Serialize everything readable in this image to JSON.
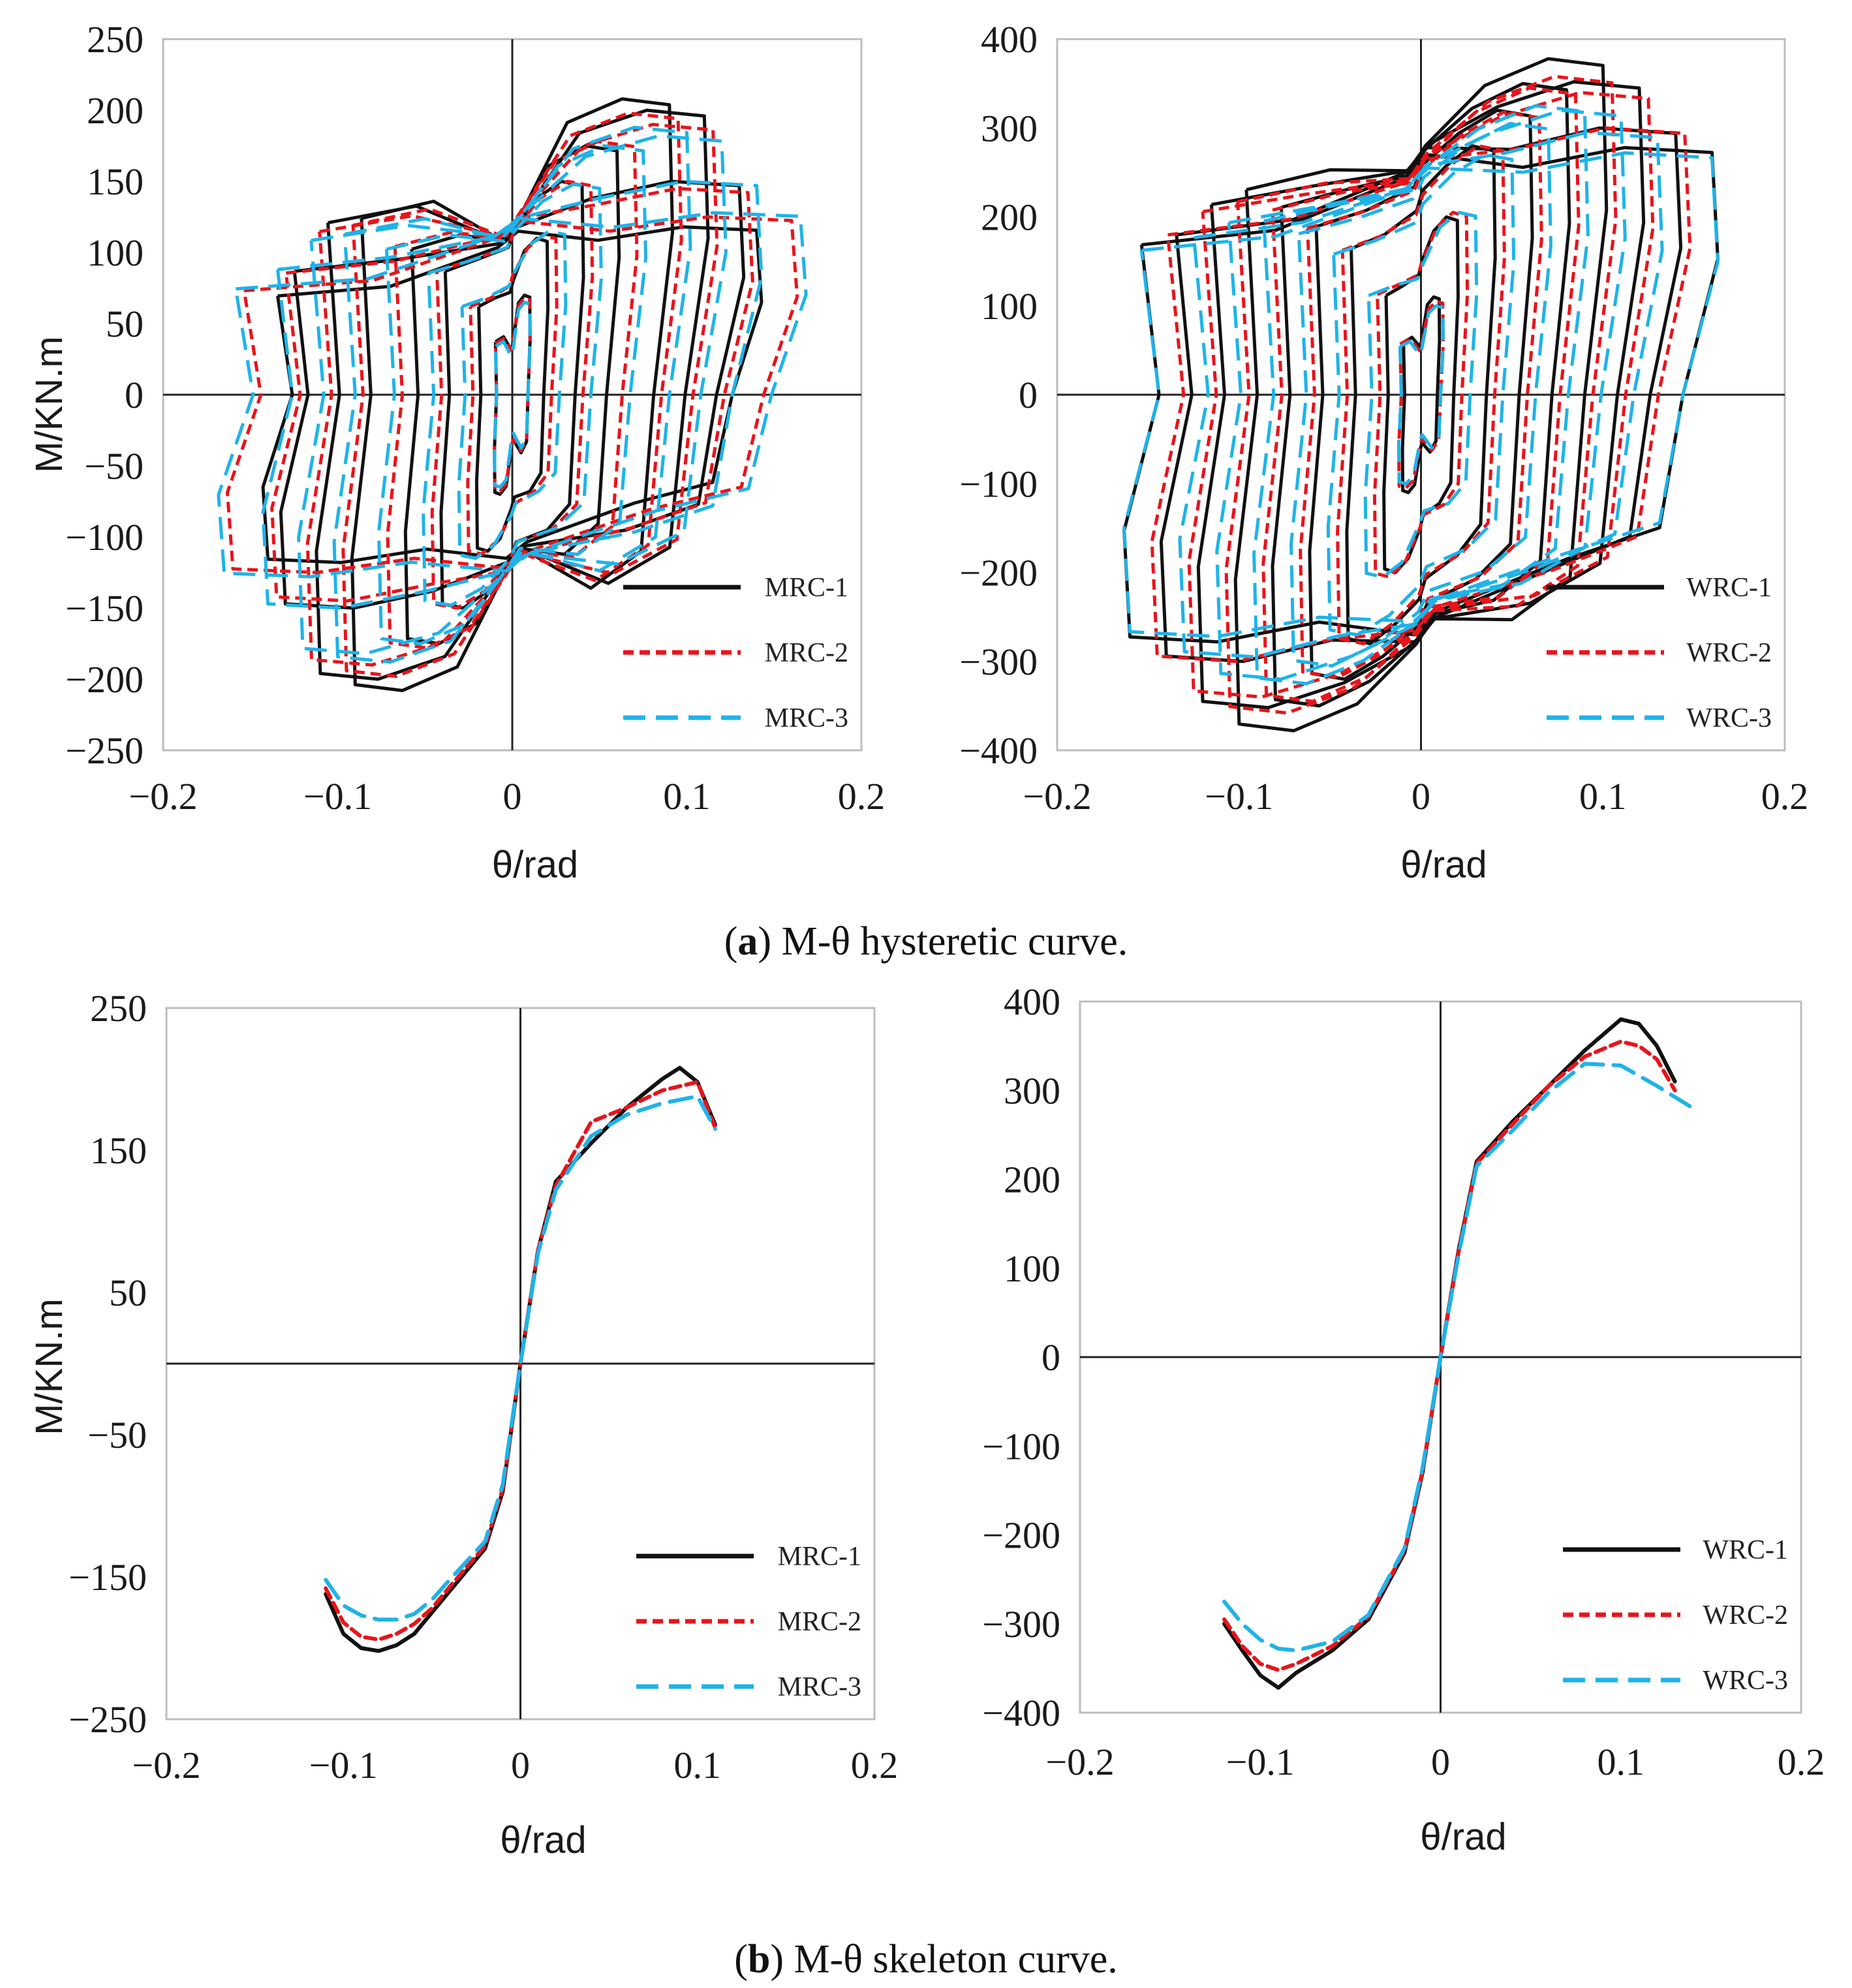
{
  "figure": {
    "caption_a": {
      "label": "a",
      "text": "M-θ hysteretic curve."
    },
    "caption_b": {
      "label": "b",
      "text": "M-θ skeleton curve."
    }
  },
  "colors": {
    "MRC-1": "#111111",
    "MRC-2": "#e8141b",
    "MRC-3": "#1fb3e8",
    "WRC-1": "#111111",
    "WRC-2": "#e8141b",
    "WRC-3": "#1fb3e8"
  },
  "chart_data": [
    {
      "id": "a-left",
      "type": "line",
      "subtype": "hysteresis",
      "xlabel": "θ/rad",
      "ylabel": "M/KN.m",
      "xlim": [
        -0.2,
        0.2
      ],
      "ylim": [
        -250,
        250
      ],
      "xticks": [
        -0.2,
        -0.1,
        0,
        0.1,
        0.2
      ],
      "xtick_labels": [
        "−0.2",
        "−0.1",
        "0",
        "0.1",
        "0.2"
      ],
      "yticks": [
        250,
        200,
        150,
        100,
        50,
        0,
        -50,
        -100,
        -150,
        -200,
        -250
      ],
      "ytick_labels": [
        "250",
        "200",
        "150",
        "100",
        "50",
        "0",
        "−50",
        "−100",
        "−150",
        "−200",
        "−250"
      ],
      "legend": [
        "MRC-1",
        "MRC-2",
        "MRC-3"
      ],
      "legend_position": "bottom-right",
      "series": [
        {
          "name": "MRC-1",
          "style": "solid",
          "loops": [
            {
              "amp": 0.01,
              "peak": 70,
              "ypeak": 60,
              "res": 35
            },
            {
              "amp": 0.02,
              "peak": 110,
              "ypeak": 100,
              "res": 80
            },
            {
              "amp": 0.04,
              "peak": 150,
              "ypeak": 140,
              "res": 115
            },
            {
              "amp": 0.06,
              "peak": 175,
              "ypeak": 165,
              "res": 120
            },
            {
              "amp": 0.09,
              "peak": 208,
              "ypeak": 200,
              "res": 120
            },
            {
              "amp": 0.11,
              "peak": 200,
              "ypeak": 195,
              "res": 120
            },
            {
              "amp": 0.13,
              "peak": 150,
              "ypeak": 140,
              "res": 118
            },
            {
              "amp": 0.14,
              "peak": 118,
              "ypeak": 112,
              "res": 115
            }
          ]
        },
        {
          "name": "MRC-2",
          "style": "dashed",
          "loops": [
            {
              "amp": 0.01,
              "peak": 68,
              "ypeak": 58,
              "res": 35
            },
            {
              "amp": 0.025,
              "peak": 112,
              "ypeak": 100,
              "res": 85
            },
            {
              "amp": 0.045,
              "peak": 150,
              "ypeak": 140,
              "res": 115
            },
            {
              "amp": 0.07,
              "peak": 178,
              "ypeak": 168,
              "res": 122
            },
            {
              "amp": 0.095,
              "peak": 198,
              "ypeak": 192,
              "res": 124
            },
            {
              "amp": 0.115,
              "peak": 190,
              "ypeak": 185,
              "res": 124
            },
            {
              "amp": 0.135,
              "peak": 145,
              "ypeak": 138,
              "res": 124
            },
            {
              "amp": 0.16,
              "peak": 125,
              "ypeak": 118,
              "res": 122
            }
          ]
        },
        {
          "name": "MRC-3",
          "style": "longdash",
          "loops": [
            {
              "amp": 0.01,
              "peak": 65,
              "ypeak": 55,
              "res": 30
            },
            {
              "amp": 0.03,
              "peak": 115,
              "ypeak": 100,
              "res": 85
            },
            {
              "amp": 0.05,
              "peak": 148,
              "ypeak": 138,
              "res": 115
            },
            {
              "amp": 0.075,
              "peak": 175,
              "ypeak": 165,
              "res": 120
            },
            {
              "amp": 0.1,
              "peak": 188,
              "ypeak": 182,
              "res": 122
            },
            {
              "amp": 0.12,
              "peak": 182,
              "ypeak": 175,
              "res": 124
            },
            {
              "amp": 0.14,
              "peak": 150,
              "ypeak": 142,
              "res": 124
            },
            {
              "amp": 0.165,
              "peak": 128,
              "ypeak": 120,
              "res": 124
            }
          ]
        }
      ]
    },
    {
      "id": "a-right",
      "type": "line",
      "subtype": "hysteresis",
      "xlabel": "θ/rad",
      "ylabel": "",
      "xlim": [
        -0.2,
        0.2
      ],
      "ylim": [
        -400,
        400
      ],
      "xticks": [
        -0.2,
        -0.1,
        0,
        0.1,
        0.2
      ],
      "xtick_labels": [
        "−0.2",
        "−0.1",
        "0",
        "0.1",
        "0.2"
      ],
      "yticks": [
        400,
        300,
        200,
        100,
        0,
        -100,
        -200,
        -300,
        -400
      ],
      "ytick_labels": [
        "400",
        "300",
        "200",
        "100",
        "0",
        "−100",
        "−200",
        "−300",
        "−400"
      ],
      "legend": [
        "WRC-1",
        "WRC-2",
        "WRC-3"
      ],
      "legend_position": "bottom-right",
      "series": [
        {
          "name": "WRC-1",
          "style": "solid",
          "loops": [
            {
              "amp": 0.01,
              "peak": 110,
              "ypeak": 95,
              "res": 60
            },
            {
              "amp": 0.02,
              "peak": 200,
              "ypeak": 180,
              "res": 150
            },
            {
              "amp": 0.04,
              "peak": 280,
              "ypeak": 265,
              "res": 230
            },
            {
              "amp": 0.06,
              "peak": 320,
              "ypeak": 305,
              "res": 260
            },
            {
              "amp": 0.08,
              "peak": 350,
              "ypeak": 340,
              "res": 275
            },
            {
              "amp": 0.1,
              "peak": 378,
              "ypeak": 372,
              "res": 280
            },
            {
              "amp": 0.12,
              "peak": 352,
              "ypeak": 345,
              "res": 280
            },
            {
              "amp": 0.14,
              "peak": 300,
              "ypeak": 290,
              "res": 278
            },
            {
              "amp": 0.16,
              "peak": 278,
              "ypeak": 272,
              "res": 270
            }
          ]
        },
        {
          "name": "WRC-2",
          "style": "dashed",
          "loops": [
            {
              "amp": 0.012,
              "peak": 105,
              "ypeak": 92,
              "res": 55
            },
            {
              "amp": 0.025,
              "peak": 205,
              "ypeak": 182,
              "res": 150
            },
            {
              "amp": 0.045,
              "peak": 280,
              "ypeak": 262,
              "res": 225
            },
            {
              "amp": 0.065,
              "peak": 318,
              "ypeak": 302,
              "res": 255
            },
            {
              "amp": 0.085,
              "peak": 345,
              "ypeak": 335,
              "res": 265
            },
            {
              "amp": 0.105,
              "peak": 358,
              "ypeak": 350,
              "res": 270
            },
            {
              "amp": 0.125,
              "peak": 340,
              "ypeak": 332,
              "res": 268
            },
            {
              "amp": 0.145,
              "peak": 300,
              "ypeak": 290,
              "res": 265
            }
          ]
        },
        {
          "name": "WRC-3",
          "style": "longdash",
          "loops": [
            {
              "amp": 0.012,
              "peak": 100,
              "ypeak": 88,
              "res": 50
            },
            {
              "amp": 0.03,
              "peak": 205,
              "ypeak": 180,
              "res": 145
            },
            {
              "amp": 0.05,
              "peak": 270,
              "ypeak": 255,
              "res": 215
            },
            {
              "amp": 0.07,
              "peak": 305,
              "ypeak": 292,
              "res": 245
            },
            {
              "amp": 0.09,
              "peak": 325,
              "ypeak": 315,
              "res": 255
            },
            {
              "amp": 0.11,
              "peak": 320,
              "ypeak": 312,
              "res": 258
            },
            {
              "amp": 0.13,
              "peak": 295,
              "ypeak": 285,
              "res": 258
            },
            {
              "amp": 0.16,
              "peak": 272,
              "ypeak": 262,
              "res": 255
            }
          ]
        }
      ]
    },
    {
      "id": "b-left",
      "type": "line",
      "subtype": "skeleton",
      "xlabel": "θ/rad",
      "ylabel": "M/KN.m",
      "xlim": [
        -0.2,
        0.2
      ],
      "ylim": [
        -250,
        250
      ],
      "xticks": [
        -0.2,
        -0.1,
        0,
        0.1,
        0.2
      ],
      "xtick_labels": [
        "−0.2",
        "−0.1",
        "0",
        "0.1",
        "0.2"
      ],
      "yticks": [
        250,
        150,
        50,
        -50,
        -150,
        -250
      ],
      "ytick_labels": [
        "250",
        "150",
        "50",
        "−50",
        "−150",
        "−250"
      ],
      "legend": [
        "MRC-1",
        "MRC-2",
        "MRC-3"
      ],
      "legend_position": "bottom-right",
      "series": [
        {
          "name": "MRC-1",
          "style": "solid",
          "x": [
            -0.11,
            -0.1,
            -0.09,
            -0.08,
            -0.07,
            -0.06,
            -0.05,
            -0.04,
            -0.02,
            -0.01,
            0,
            0.01,
            0.02,
            0.04,
            0.06,
            0.08,
            0.09,
            0.1,
            0.11
          ],
          "y": [
            -162,
            -190,
            -200,
            -202,
            -198,
            -190,
            -175,
            -160,
            -130,
            -90,
            0,
            80,
            128,
            155,
            180,
            200,
            208,
            198,
            168
          ]
        },
        {
          "name": "MRC-2",
          "style": "dashed",
          "x": [
            -0.11,
            -0.1,
            -0.09,
            -0.08,
            -0.07,
            -0.06,
            -0.05,
            -0.04,
            -0.02,
            -0.01,
            0,
            0.01,
            0.02,
            0.04,
            0.06,
            0.08,
            0.1,
            0.11
          ],
          "y": [
            -158,
            -182,
            -192,
            -194,
            -190,
            -183,
            -172,
            -157,
            -128,
            -88,
            0,
            80,
            125,
            170,
            180,
            192,
            198,
            166
          ]
        },
        {
          "name": "MRC-3",
          "style": "longdash",
          "x": [
            -0.11,
            -0.1,
            -0.09,
            -0.08,
            -0.07,
            -0.06,
            -0.05,
            -0.04,
            -0.02,
            -0.01,
            0,
            0.01,
            0.02,
            0.04,
            0.06,
            0.08,
            0.1,
            0.11
          ],
          "y": [
            -152,
            -170,
            -177,
            -180,
            -180,
            -176,
            -166,
            -152,
            -125,
            -85,
            0,
            78,
            122,
            160,
            175,
            183,
            188,
            165
          ]
        }
      ]
    },
    {
      "id": "b-right",
      "type": "line",
      "subtype": "skeleton",
      "xlabel": "θ/rad",
      "ylabel": "",
      "xlim": [
        -0.2,
        0.2
      ],
      "ylim": [
        -400,
        400
      ],
      "xticks": [
        -0.2,
        -0.1,
        0,
        0.1,
        0.2
      ],
      "xtick_labels": [
        "−0.2",
        "−0.1",
        "0",
        "0.1",
        "0.2"
      ],
      "yticks": [
        400,
        300,
        200,
        100,
        0,
        -100,
        -200,
        -300,
        -400
      ],
      "ytick_labels": [
        "400",
        "300",
        "200",
        "100",
        "0",
        "−100",
        "−200",
        "−300",
        "−400"
      ],
      "legend": [
        "WRC-1",
        "WRC-2",
        "WRC-3"
      ],
      "legend_position": "bottom-right",
      "series": [
        {
          "name": "WRC-1",
          "style": "solid",
          "x": [
            -0.12,
            -0.11,
            -0.1,
            -0.09,
            -0.08,
            -0.06,
            -0.04,
            -0.02,
            -0.01,
            0,
            0.01,
            0.02,
            0.04,
            0.06,
            0.08,
            0.1,
            0.11,
            0.12,
            0.13
          ],
          "y": [
            -300,
            -330,
            -358,
            -372,
            -355,
            -330,
            -295,
            -220,
            -130,
            0,
            120,
            220,
            265,
            305,
            345,
            380,
            375,
            350,
            310
          ]
        },
        {
          "name": "WRC-2",
          "style": "dashed",
          "x": [
            -0.12,
            -0.11,
            -0.1,
            -0.09,
            -0.08,
            -0.06,
            -0.04,
            -0.02,
            -0.01,
            0,
            0.01,
            0.02,
            0.04,
            0.06,
            0.08,
            0.1,
            0.11,
            0.12,
            0.13
          ],
          "y": [
            -295,
            -325,
            -345,
            -352,
            -345,
            -325,
            -292,
            -218,
            -128,
            0,
            118,
            218,
            262,
            305,
            338,
            355,
            350,
            335,
            300
          ]
        },
        {
          "name": "WRC-3",
          "style": "longdash",
          "x": [
            -0.12,
            -0.11,
            -0.1,
            -0.09,
            -0.08,
            -0.06,
            -0.04,
            -0.02,
            -0.01,
            0,
            0.01,
            0.02,
            0.04,
            0.06,
            0.08,
            0.1,
            0.12,
            0.14
          ],
          "y": [
            -275,
            -300,
            -318,
            -328,
            -330,
            -320,
            -290,
            -215,
            -125,
            0,
            115,
            215,
            255,
            298,
            330,
            328,
            305,
            280
          ]
        }
      ]
    }
  ]
}
